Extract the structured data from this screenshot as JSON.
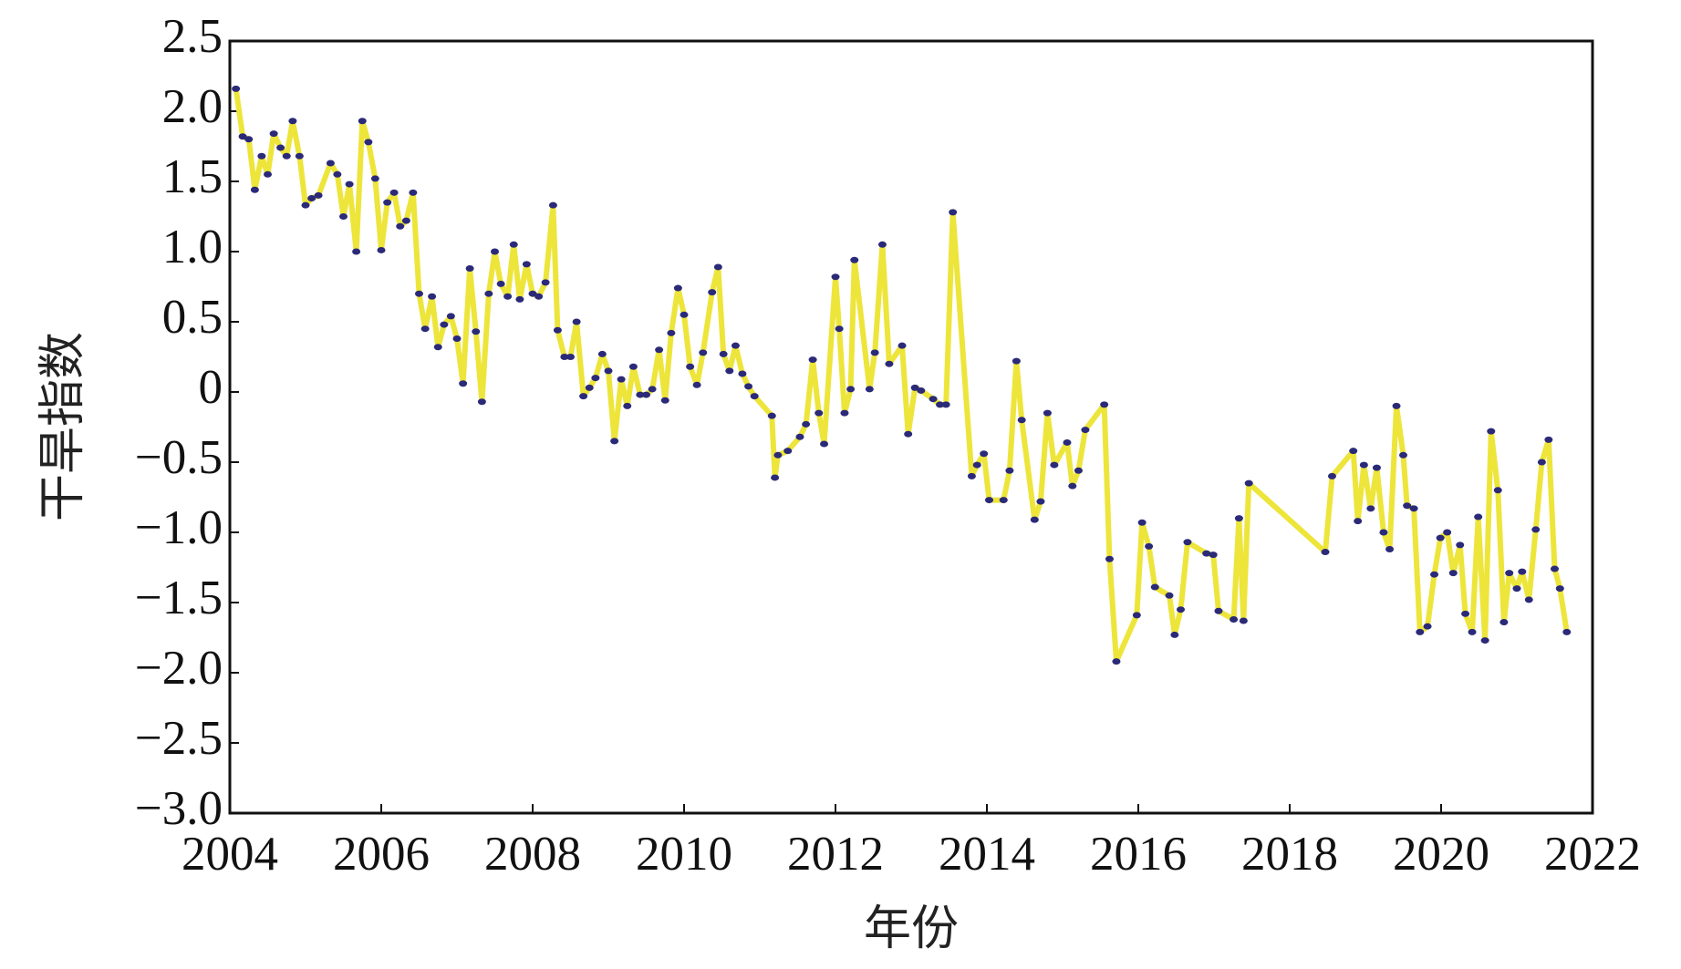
{
  "chart_data": {
    "type": "line",
    "xlabel": "年份",
    "ylabel": "干旱指数",
    "color": "#ede53a",
    "marker_color": "#2b2a78",
    "xlim": [
      2004,
      2022
    ],
    "xticks": [
      2004,
      2006,
      2008,
      2010,
      2012,
      2014,
      2016,
      2018,
      2020,
      2022
    ],
    "ylim": [
      -3,
      2.5
    ],
    "yticks": [
      2.5,
      {
        "value": 2,
        "label": "2.0"
      },
      1.5,
      {
        "value": 1,
        "label": "1.0"
      },
      0.5,
      0,
      {
        "value": -0.5,
        "label": "−0.5"
      },
      {
        "value": -1,
        "label": "−1.0"
      },
      {
        "value": -1.5,
        "label": "−1.5"
      },
      {
        "value": -2,
        "label": "−2.0"
      },
      {
        "value": -2.5,
        "label": "−2.5"
      },
      {
        "value": -3,
        "label": "−3.0"
      }
    ],
    "x": [
      2004.08,
      2004.17,
      2004.25,
      2004.33,
      2004.42,
      2004.5,
      2004.58,
      2004.67,
      2004.75,
      2004.83,
      2004.92,
      2005.0,
      2005.08,
      2005.17,
      2005.33,
      2005.42,
      2005.5,
      2005.58,
      2005.67,
      2005.75,
      2005.83,
      2005.92,
      2006.0,
      2006.08,
      2006.17,
      2006.25,
      2006.33,
      2006.42,
      2006.5,
      2006.58,
      2006.67,
      2006.75,
      2006.83,
      2006.92,
      2007.0,
      2007.08,
      2007.17,
      2007.25,
      2007.33,
      2007.42,
      2007.5,
      2007.58,
      2007.67,
      2007.75,
      2007.83,
      2007.92,
      2008.0,
      2008.08,
      2008.17,
      2008.27,
      2008.33,
      2008.42,
      2008.5,
      2008.58,
      2008.67,
      2008.75,
      2008.83,
      2008.92,
      2009.0,
      2009.08,
      2009.17,
      2009.25,
      2009.33,
      2009.42,
      2009.5,
      2009.58,
      2009.67,
      2009.75,
      2009.83,
      2009.92,
      2010.0,
      2010.08,
      2010.17,
      2010.25,
      2010.37,
      2010.45,
      2010.52,
      2010.6,
      2010.68,
      2010.77,
      2010.85,
      2010.93,
      2011.16,
      2011.2,
      2011.24,
      2011.37,
      2011.53,
      2011.61,
      2011.7,
      2011.78,
      2011.85,
      2012.0,
      2012.05,
      2012.12,
      2012.2,
      2012.25,
      2012.45,
      2012.52,
      2012.62,
      2012.71,
      2012.88,
      2012.96,
      2013.05,
      2013.13,
      2013.29,
      2013.38,
      2013.46,
      2013.55,
      2013.8,
      2013.87,
      2013.96,
      2014.03,
      2014.22,
      2014.3,
      2014.39,
      2014.46,
      2014.63,
      2014.71,
      2014.8,
      2014.89,
      2015.06,
      2015.13,
      2015.21,
      2015.3,
      2015.55,
      2015.62,
      2015.71,
      2015.98,
      2016.05,
      2016.14,
      2016.22,
      2016.41,
      2016.48,
      2016.56,
      2016.65,
      2016.9,
      2016.99,
      2017.06,
      2017.26,
      2017.33,
      2017.39,
      2017.46,
      2018.47,
      2018.56,
      2018.84,
      2018.9,
      2018.98,
      2019.07,
      2019.15,
      2019.24,
      2019.32,
      2019.41,
      2019.5,
      2019.55,
      2019.64,
      2019.72,
      2019.82,
      2019.91,
      2019.99,
      2020.08,
      2020.16,
      2020.25,
      2020.32,
      2020.41,
      2020.49,
      2020.58,
      2020.66,
      2020.75,
      2020.83,
      2020.9,
      2021.0,
      2021.07,
      2021.16,
      2021.25,
      2021.33,
      2021.42,
      2021.5,
      2021.57,
      2021.66
    ],
    "values": [
      2.16,
      1.82,
      1.8,
      1.44,
      1.68,
      1.55,
      1.84,
      1.74,
      1.68,
      1.93,
      1.68,
      1.33,
      1.38,
      1.4,
      1.63,
      1.55,
      1.25,
      1.48,
      1.0,
      1.93,
      1.78,
      1.52,
      1.01,
      1.35,
      1.42,
      1.18,
      1.22,
      1.42,
      0.7,
      0.45,
      0.68,
      0.32,
      0.48,
      0.54,
      0.38,
      0.06,
      0.88,
      0.43,
      -0.07,
      0.7,
      1.0,
      0.77,
      0.68,
      1.05,
      0.66,
      0.91,
      0.7,
      0.68,
      0.78,
      1.33,
      0.44,
      0.25,
      0.25,
      0.5,
      -0.03,
      0.03,
      0.1,
      0.27,
      0.15,
      -0.35,
      0.09,
      -0.1,
      0.18,
      -0.02,
      -0.02,
      0.02,
      0.3,
      -0.06,
      0.42,
      0.74,
      0.55,
      0.18,
      0.05,
      0.28,
      0.71,
      0.89,
      0.27,
      0.15,
      0.33,
      0.13,
      0.04,
      -0.03,
      -0.17,
      -0.61,
      -0.45,
      -0.42,
      -0.32,
      -0.23,
      0.23,
      -0.15,
      -0.37,
      0.82,
      0.45,
      -0.15,
      0.02,
      0.94,
      0.02,
      0.28,
      1.05,
      0.2,
      0.33,
      -0.3,
      0.03,
      0.01,
      -0.05,
      -0.09,
      -0.09,
      1.28,
      -0.6,
      -0.52,
      -0.44,
      -0.77,
      -0.77,
      -0.56,
      0.22,
      -0.2,
      -0.91,
      -0.78,
      -0.15,
      -0.52,
      -0.36,
      -0.67,
      -0.56,
      -0.27,
      -0.09,
      -1.19,
      -1.92,
      -1.59,
      -0.93,
      -1.1,
      -1.39,
      -1.45,
      -1.73,
      -1.55,
      -1.07,
      -1.15,
      -1.16,
      -1.56,
      -1.62,
      -0.9,
      -1.63,
      -0.65,
      -1.14,
      -0.6,
      -0.42,
      -0.92,
      -0.52,
      -0.83,
      -0.54,
      -1.0,
      -1.12,
      -0.1,
      -0.45,
      -0.81,
      -0.83,
      -1.71,
      -1.67,
      -1.3,
      -1.04,
      -1.0,
      -1.29,
      -1.09,
      -1.58,
      -1.71,
      -0.89,
      -1.77,
      -0.28,
      -0.7,
      -1.64,
      -1.29,
      -1.4,
      -1.28,
      -1.48,
      -0.98,
      -0.5,
      -0.34,
      -1.26,
      -1.4,
      -1.71
    ]
  }
}
